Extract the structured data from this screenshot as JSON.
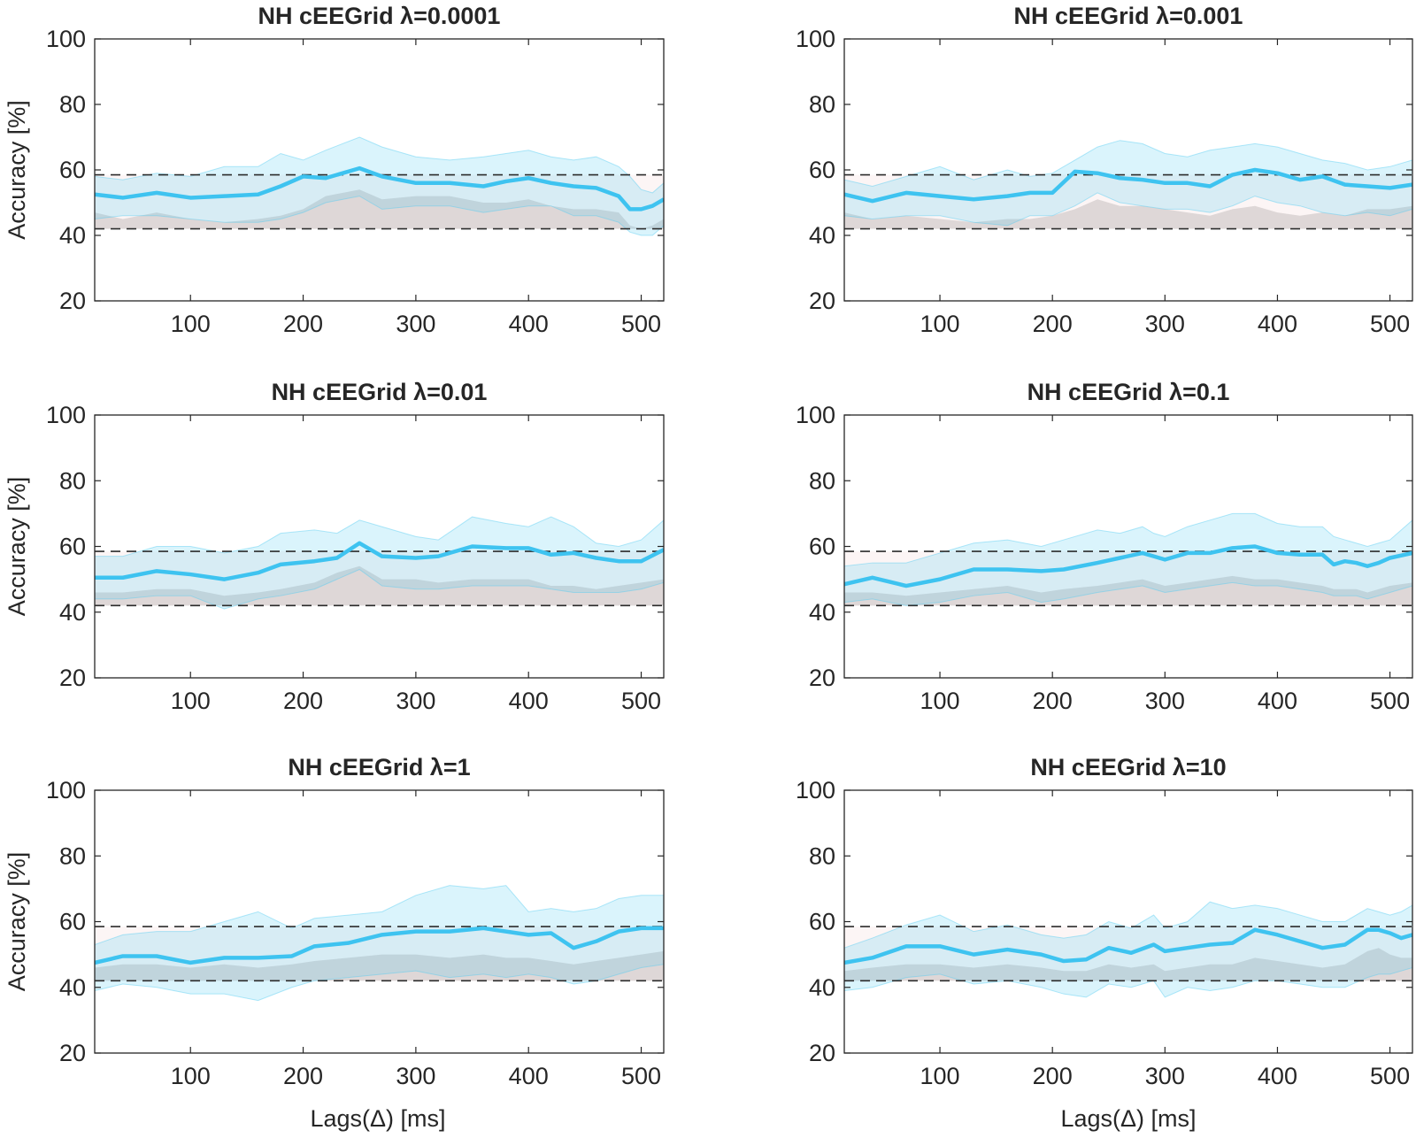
{
  "figure": {
    "xlabel": "Lags(Δ) [ms]",
    "ylabel": "Accuracy [%]"
  },
  "chart_data": [
    {
      "type": "line",
      "title": "NH cEEGrid λ=0.0001",
      "xlabel": "Lags(Δ) [ms]",
      "ylabel": "Accuracy [%]",
      "xlim": [
        15,
        520
      ],
      "ylim": [
        20,
        100
      ],
      "xticks": [
        "100",
        "200",
        "300",
        "400",
        "500"
      ],
      "yticks": [
        "20",
        "40",
        "60",
        "80",
        "100"
      ],
      "chance_upper": 58.5,
      "chance_lower": 42,
      "x": [
        15,
        40,
        70,
        100,
        130,
        160,
        180,
        200,
        220,
        250,
        270,
        300,
        330,
        360,
        380,
        400,
        420,
        440,
        460,
        480,
        490,
        500,
        510,
        520
      ],
      "series": [
        {
          "name": "mean",
          "values": [
            52.5,
            51.5,
            53,
            51.5,
            52,
            52.5,
            55,
            58,
            57.5,
            60.5,
            58,
            56,
            56,
            55,
            56.5,
            57.5,
            56,
            55,
            54.5,
            52,
            48,
            48,
            49,
            51
          ]
        },
        {
          "name": "upper",
          "values": [
            58,
            57,
            59,
            58,
            61,
            61,
            65,
            63,
            66,
            70,
            67,
            64,
            63,
            64,
            65,
            66,
            64,
            63,
            64,
            61,
            58,
            54,
            53,
            56
          ]
        },
        {
          "name": "lower",
          "values": [
            45,
            46,
            46,
            45,
            44,
            44,
            45,
            47,
            50,
            52,
            48,
            49,
            49,
            47,
            48,
            49,
            49,
            46,
            46,
            44,
            41,
            40,
            40,
            43
          ]
        },
        {
          "name": "null_upper",
          "values": [
            47,
            45,
            47,
            45,
            44,
            45,
            46,
            48,
            52,
            54,
            51,
            52,
            52,
            50,
            50,
            51,
            49,
            48,
            48,
            47,
            43,
            42,
            43,
            45
          ]
        }
      ]
    },
    {
      "type": "line",
      "title": "NH cEEGrid λ=0.001",
      "xlabel": "Lags(Δ) [ms]",
      "ylabel": "Accuracy [%]",
      "xlim": [
        15,
        520
      ],
      "ylim": [
        20,
        100
      ],
      "xticks": [
        "100",
        "200",
        "300",
        "400",
        "500"
      ],
      "yticks": [
        "20",
        "40",
        "60",
        "80",
        "100"
      ],
      "chance_upper": 58.5,
      "chance_lower": 42,
      "x": [
        15,
        40,
        70,
        100,
        130,
        160,
        180,
        200,
        220,
        240,
        260,
        280,
        300,
        320,
        340,
        360,
        380,
        400,
        420,
        440,
        460,
        480,
        500,
        520
      ],
      "series": [
        {
          "name": "mean",
          "values": [
            52.5,
            50.5,
            53,
            52,
            51,
            52,
            53,
            53,
            59.5,
            59,
            57.5,
            57,
            56,
            56,
            55,
            58.5,
            60,
            59,
            57,
            58,
            55.5,
            55,
            54.5,
            55.5
          ]
        },
        {
          "name": "upper",
          "values": [
            57,
            55,
            58,
            61,
            57,
            60,
            58,
            59,
            63,
            67,
            69,
            68,
            65,
            64,
            66,
            67,
            68,
            67,
            65,
            63,
            62,
            60,
            61,
            63
          ]
        },
        {
          "name": "lower",
          "values": [
            46,
            45,
            46,
            46,
            44,
            43,
            46,
            46,
            49,
            53,
            50,
            49,
            48,
            48,
            47,
            49,
            52,
            50,
            49,
            47,
            46,
            47,
            46,
            48
          ]
        },
        {
          "name": "null_upper",
          "values": [
            47,
            45,
            46,
            45,
            44,
            45,
            45,
            46,
            48,
            51,
            49,
            49,
            48,
            47,
            46,
            48,
            49,
            47,
            46,
            47,
            46,
            48,
            48,
            49
          ]
        }
      ]
    },
    {
      "type": "line",
      "title": "NH cEEGrid λ=0.01",
      "xlabel": "Lags(Δ) [ms]",
      "ylabel": "Accuracy [%]",
      "xlim": [
        15,
        520
      ],
      "ylim": [
        20,
        100
      ],
      "xticks": [
        "100",
        "200",
        "300",
        "400",
        "500"
      ],
      "yticks": [
        "20",
        "40",
        "60",
        "80",
        "100"
      ],
      "chance_upper": 58.5,
      "chance_lower": 42,
      "x": [
        15,
        40,
        70,
        100,
        130,
        160,
        180,
        210,
        230,
        250,
        270,
        300,
        320,
        350,
        380,
        400,
        420,
        440,
        460,
        480,
        500,
        520
      ],
      "series": [
        {
          "name": "mean",
          "values": [
            50.5,
            50.5,
            52.5,
            51.5,
            50,
            52,
            54.5,
            55.5,
            56.5,
            61,
            57,
            56.5,
            57,
            60,
            59.5,
            59.5,
            57.5,
            58,
            56.5,
            55.5,
            55.5,
            59
          ]
        },
        {
          "name": "upper",
          "values": [
            57,
            57,
            60,
            60,
            58,
            60,
            64,
            65,
            64,
            68,
            66,
            63,
            62,
            69,
            67,
            66,
            69,
            66,
            61,
            60,
            62,
            68
          ]
        },
        {
          "name": "lower",
          "values": [
            44,
            44,
            45,
            45,
            41,
            44,
            45,
            47,
            50,
            53,
            48,
            47,
            47,
            48,
            48,
            48,
            47,
            46,
            46,
            46,
            47,
            49
          ]
        },
        {
          "name": "null_upper",
          "values": [
            46,
            46,
            47,
            47,
            45,
            46,
            47,
            49,
            52,
            54,
            50,
            50,
            49,
            50,
            50,
            50,
            48,
            48,
            47,
            48,
            49,
            50
          ]
        }
      ]
    },
    {
      "type": "line",
      "title": "NH cEEGrid λ=0.1",
      "xlabel": "Lags(Δ) [ms]",
      "ylabel": "Accuracy [%]",
      "xlim": [
        15,
        520
      ],
      "ylim": [
        20,
        100
      ],
      "xticks": [
        "100",
        "200",
        "300",
        "400",
        "500"
      ],
      "yticks": [
        "20",
        "40",
        "60",
        "80",
        "100"
      ],
      "chance_upper": 58.5,
      "chance_lower": 42,
      "x": [
        15,
        40,
        70,
        100,
        130,
        160,
        190,
        210,
        240,
        260,
        280,
        290,
        300,
        320,
        340,
        360,
        380,
        400,
        420,
        440,
        450,
        460,
        470,
        480,
        490,
        500,
        520
      ],
      "series": [
        {
          "name": "mean",
          "values": [
            48.5,
            50.5,
            48,
            50,
            53,
            53,
            52.5,
            53,
            55,
            56.5,
            58,
            57,
            56,
            58,
            58,
            59.5,
            60,
            58,
            57.5,
            57.5,
            54.5,
            55.5,
            55,
            54,
            55,
            56.5,
            58
          ]
        },
        {
          "name": "upper",
          "values": [
            54,
            55,
            55,
            58,
            61,
            62,
            60,
            62,
            65,
            64,
            66,
            64,
            63,
            66,
            68,
            70,
            70,
            67,
            66,
            66,
            63,
            62,
            61,
            60,
            61,
            62,
            68
          ]
        },
        {
          "name": "lower",
          "values": [
            43,
            44,
            42,
            43,
            45,
            46,
            43,
            44,
            46,
            47,
            48,
            47,
            46,
            47,
            48,
            49,
            48,
            48,
            47,
            46,
            45,
            45,
            45,
            44,
            45,
            46,
            48
          ]
        },
        {
          "name": "null_upper",
          "values": [
            46,
            46,
            45,
            46,
            47,
            48,
            46,
            47,
            48,
            49,
            50,
            49,
            48,
            49,
            50,
            51,
            50,
            50,
            49,
            48,
            47,
            47,
            47,
            46,
            47,
            48,
            49
          ]
        }
      ]
    },
    {
      "type": "line",
      "title": "NH cEEGrid λ=1",
      "xlabel": "Lags(Δ) [ms]",
      "ylabel": "Accuracy [%]",
      "xlim": [
        15,
        520
      ],
      "ylim": [
        20,
        100
      ],
      "xticks": [
        "100",
        "200",
        "300",
        "400",
        "500"
      ],
      "yticks": [
        "20",
        "40",
        "60",
        "80",
        "100"
      ],
      "chance_upper": 58.5,
      "chance_lower": 42,
      "x": [
        15,
        40,
        70,
        100,
        130,
        160,
        190,
        210,
        240,
        270,
        300,
        330,
        360,
        380,
        400,
        420,
        440,
        460,
        480,
        500,
        520
      ],
      "series": [
        {
          "name": "mean",
          "values": [
            47.5,
            49.5,
            49.5,
            47.5,
            49,
            49,
            49.5,
            52.5,
            53.5,
            56,
            57,
            57,
            58,
            57,
            56,
            56.5,
            52,
            54,
            57,
            58,
            58
          ]
        },
        {
          "name": "upper",
          "values": [
            53,
            56,
            57,
            57,
            60,
            63,
            58,
            61,
            62,
            63,
            68,
            71,
            70,
            71,
            63,
            64,
            63,
            64,
            67,
            68,
            68
          ]
        },
        {
          "name": "lower",
          "values": [
            39,
            41,
            40,
            38,
            38,
            36,
            40,
            42,
            43,
            44,
            45,
            43,
            44,
            43,
            44,
            43,
            41,
            42,
            44,
            46,
            47
          ]
        },
        {
          "name": "null_upper",
          "values": [
            46,
            47,
            47,
            46,
            47,
            46,
            47,
            48,
            49,
            50,
            50,
            49,
            50,
            49,
            49,
            48,
            47,
            48,
            49,
            50,
            51
          ]
        }
      ]
    },
    {
      "type": "line",
      "title": "NH cEEGrid λ=10",
      "xlabel": "Lags(Δ) [ms]",
      "ylabel": "Accuracy [%]",
      "xlim": [
        15,
        520
      ],
      "ylim": [
        20,
        100
      ],
      "xticks": [
        "100",
        "200",
        "300",
        "400",
        "500"
      ],
      "yticks": [
        "20",
        "40",
        "60",
        "80",
        "100"
      ],
      "chance_upper": 58.5,
      "chance_lower": 42,
      "x": [
        15,
        40,
        70,
        100,
        130,
        160,
        190,
        210,
        230,
        250,
        270,
        290,
        300,
        320,
        340,
        360,
        380,
        400,
        420,
        440,
        460,
        480,
        490,
        500,
        510,
        520
      ],
      "series": [
        {
          "name": "mean",
          "values": [
            47.5,
            49,
            52.5,
            52.5,
            50,
            51.5,
            50,
            48,
            48.5,
            52,
            50.5,
            53,
            51,
            52,
            53,
            53.5,
            57.5,
            56,
            54,
            52,
            53,
            57.5,
            57.5,
            56.5,
            55,
            56
          ]
        },
        {
          "name": "upper",
          "values": [
            52,
            55,
            59,
            62,
            57,
            59,
            56,
            55,
            56,
            60,
            58,
            62,
            58,
            60,
            66,
            64,
            65,
            64,
            62,
            60,
            60,
            64,
            63,
            62,
            63,
            65
          ]
        },
        {
          "name": "lower",
          "values": [
            39,
            40,
            43,
            44,
            41,
            42,
            40,
            38,
            37,
            41,
            40,
            42,
            37,
            40,
            39,
            40,
            42,
            42,
            41,
            40,
            40,
            43,
            44,
            44,
            45,
            46
          ]
        },
        {
          "name": "null_upper",
          "values": [
            45,
            46,
            47,
            47,
            46,
            47,
            46,
            45,
            45,
            47,
            46,
            47,
            45,
            46,
            47,
            47,
            49,
            48,
            47,
            46,
            47,
            51,
            52,
            50,
            49,
            49
          ]
        }
      ]
    }
  ]
}
